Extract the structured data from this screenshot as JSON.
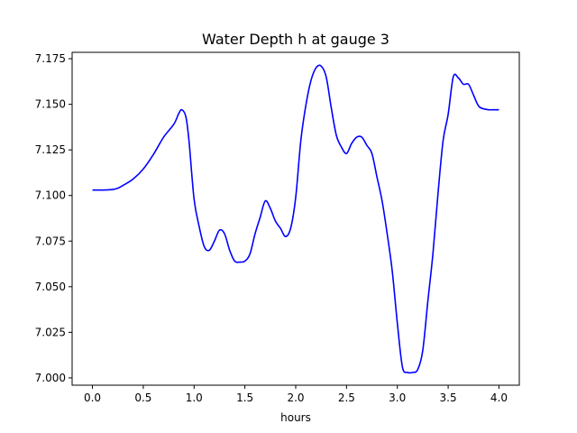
{
  "chart_data": {
    "type": "line",
    "title": "Water Depth h at gauge 3",
    "xlabel": "hours",
    "ylabel": "",
    "xlim": [
      -0.2,
      4.2
    ],
    "ylim": [
      6.996,
      7.1785
    ],
    "xticks": [
      0.0,
      0.5,
      1.0,
      1.5,
      2.0,
      2.5,
      3.0,
      3.5,
      4.0
    ],
    "xtick_labels": [
      "0.0",
      "0.5",
      "1.0",
      "1.5",
      "2.0",
      "2.5",
      "3.0",
      "3.5",
      "4.0"
    ],
    "yticks": [
      7.0,
      7.025,
      7.05,
      7.075,
      7.1,
      7.125,
      7.15,
      7.175
    ],
    "ytick_labels": [
      "7.000",
      "7.025",
      "7.050",
      "7.075",
      "7.100",
      "7.125",
      "7.150",
      "7.175"
    ],
    "grid": false,
    "series": [
      {
        "color": "#0000ff",
        "x": [
          0.0,
          0.1,
          0.2,
          0.25,
          0.3,
          0.4,
          0.5,
          0.6,
          0.7,
          0.8,
          0.85,
          0.88,
          0.92,
          0.95,
          1.0,
          1.05,
          1.1,
          1.15,
          1.2,
          1.25,
          1.3,
          1.35,
          1.4,
          1.45,
          1.5,
          1.55,
          1.6,
          1.65,
          1.7,
          1.75,
          1.8,
          1.85,
          1.9,
          1.95,
          2.0,
          2.05,
          2.1,
          2.15,
          2.2,
          2.25,
          2.3,
          2.35,
          2.4,
          2.45,
          2.5,
          2.55,
          2.6,
          2.65,
          2.7,
          2.75,
          2.8,
          2.85,
          2.9,
          2.95,
          3.0,
          3.05,
          3.1,
          3.15,
          3.2,
          3.25,
          3.3,
          3.35,
          3.4,
          3.45,
          3.5,
          3.55,
          3.6,
          3.65,
          3.7,
          3.75,
          3.8,
          3.85,
          3.9,
          3.95,
          4.0
        ],
        "y": [
          7.103,
          7.103,
          7.1033,
          7.104,
          7.1055,
          7.109,
          7.1145,
          7.1225,
          7.132,
          7.139,
          7.145,
          7.147,
          7.143,
          7.13,
          7.098,
          7.083,
          7.072,
          7.07,
          7.075,
          7.081,
          7.079,
          7.07,
          7.064,
          7.0635,
          7.064,
          7.068,
          7.079,
          7.088,
          7.097,
          7.093,
          7.086,
          7.082,
          7.0775,
          7.082,
          7.099,
          7.13,
          7.1495,
          7.163,
          7.17,
          7.171,
          7.165,
          7.148,
          7.133,
          7.1265,
          7.123,
          7.1285,
          7.132,
          7.132,
          7.1275,
          7.123,
          7.11,
          7.097,
          7.079,
          7.0585,
          7.03,
          7.006,
          7.003,
          7.003,
          7.0045,
          7.015,
          7.042,
          7.068,
          7.101,
          7.13,
          7.1445,
          7.165,
          7.1645,
          7.161,
          7.161,
          7.155,
          7.149,
          7.1475,
          7.147,
          7.147,
          7.147
        ]
      }
    ]
  }
}
